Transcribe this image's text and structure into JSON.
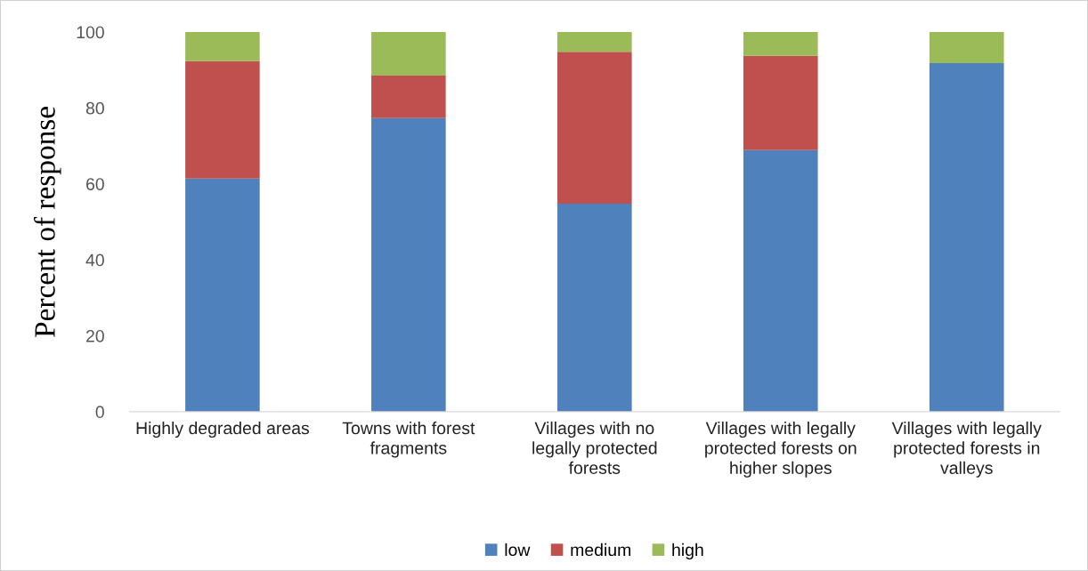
{
  "chart_data": {
    "type": "bar",
    "stacked": true,
    "ylabel": "Percent of response",
    "categories": [
      "Highly degraded areas",
      "Towns with forest fragments",
      "Villages with no legally protected forests",
      "Villages with legally protected forests on higher slopes",
      "Villages with legally protected forests in valleys"
    ],
    "series": [
      {
        "name": "low",
        "color": "#4f81bd",
        "values": [
          61.4,
          77.3,
          54.8,
          68.9,
          91.8
        ]
      },
      {
        "name": "medium",
        "color": "#c0504d",
        "values": [
          30.9,
          11.2,
          40.0,
          24.8,
          0
        ]
      },
      {
        "name": "high",
        "color": "#9bbb59",
        "values": [
          7.7,
          11.5,
          5.2,
          6.3,
          8.2
        ]
      }
    ],
    "ylim": [
      0,
      100
    ],
    "yticks": [
      0,
      20,
      40,
      60,
      80,
      100
    ],
    "grid": false,
    "legend": "bottom"
  }
}
